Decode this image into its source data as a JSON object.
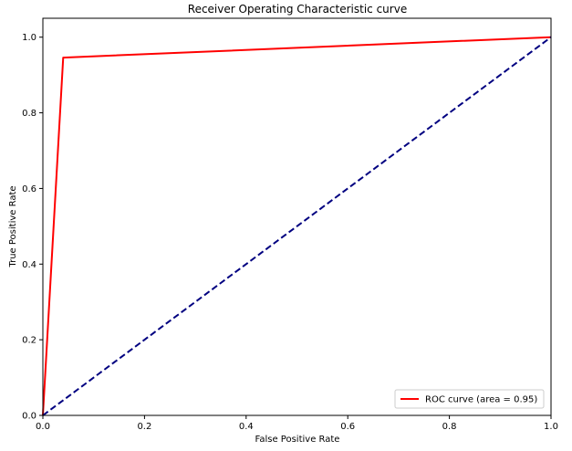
{
  "chart_data": {
    "type": "line",
    "title": "Receiver Operating Characteristic curve",
    "xlabel": "False Positive Rate",
    "ylabel": "True Positive Rate",
    "xlim": [
      0,
      1
    ],
    "ylim": [
      0,
      1.05
    ],
    "x_ticks": [
      0,
      0.2,
      0.4,
      0.6,
      0.8,
      1
    ],
    "x_tick_labels": [
      "0.0",
      "0.2",
      "0.4",
      "0.6",
      "0.8",
      "1.0"
    ],
    "y_ticks": [
      0,
      0.2,
      0.4,
      0.6,
      0.8,
      1
    ],
    "y_tick_labels": [
      "0.0",
      "0.2",
      "0.4",
      "0.6",
      "0.8",
      "1.0"
    ],
    "grid": false,
    "legend_position": "lower-right",
    "series": [
      {
        "name": "ROC curve (area = 0.95)",
        "color": "#ff0000",
        "style": "solid",
        "x": [
          0,
          0.04,
          1
        ],
        "y": [
          0,
          0.946,
          1
        ]
      },
      {
        "color": "#000080",
        "style": "dashed",
        "x": [
          0,
          1
        ],
        "y": [
          0,
          1
        ]
      }
    ]
  }
}
